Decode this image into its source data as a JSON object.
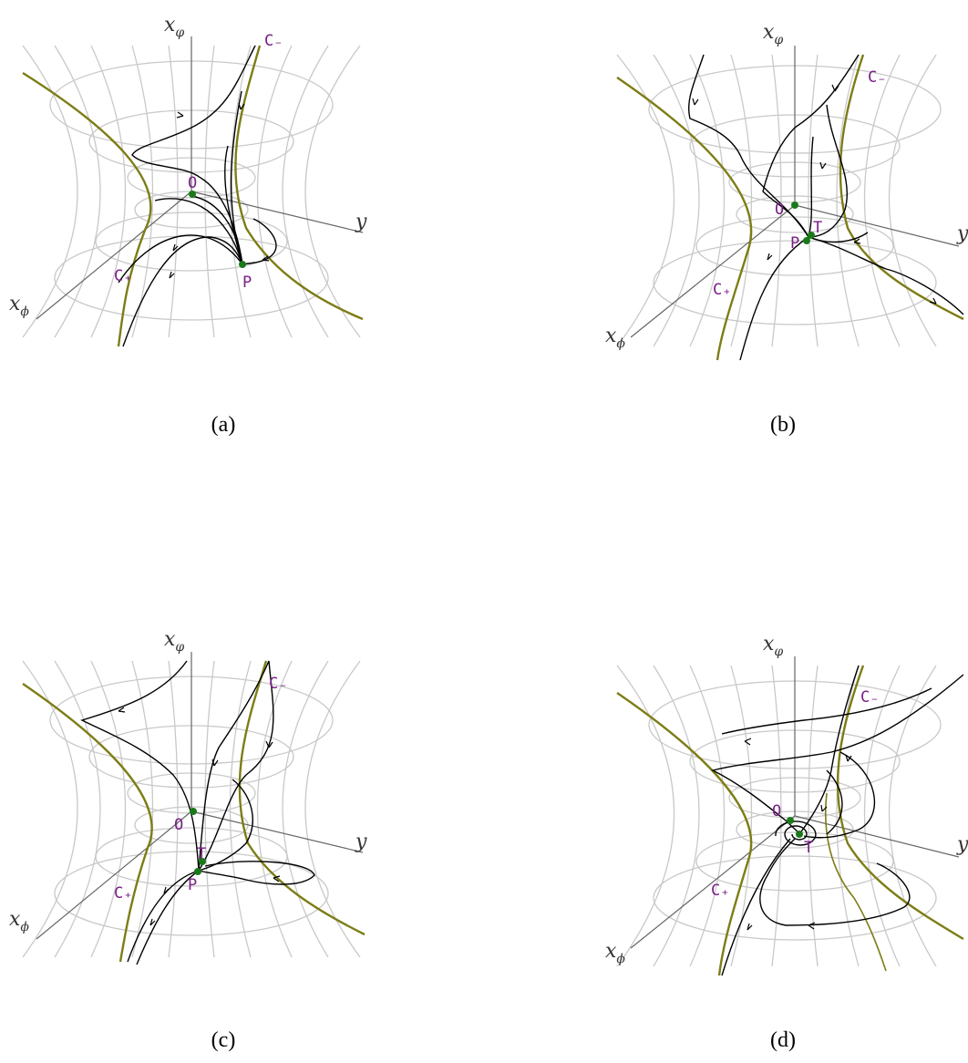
{
  "panels": [
    {
      "caption": "(a)",
      "labels": {
        "x_varphi": "x",
        "x_varphi_sub": "φ",
        "y": "y",
        "x_phi": "x",
        "x_phi_sub": "ϕ",
        "c_minus": "C₋",
        "c_plus": "C₊",
        "o": "O",
        "p": "P"
      }
    },
    {
      "caption": "(b)",
      "labels": {
        "x_varphi": "x",
        "x_varphi_sub": "φ",
        "y": "y",
        "x_phi": "x",
        "x_phi_sub": "ϕ",
        "c_minus": "C₋",
        "c_plus": "C₊",
        "o": "O",
        "p": "P",
        "t": "T"
      }
    },
    {
      "caption": "(c)",
      "labels": {
        "x_varphi": "x",
        "x_varphi_sub": "φ",
        "y": "y",
        "x_phi": "x",
        "x_phi_sub": "ϕ",
        "c_minus": "C₋",
        "c_plus": "C₊",
        "o": "O",
        "p": "P",
        "t": "T"
      }
    },
    {
      "caption": "(d)",
      "labels": {
        "x_varphi": "x",
        "x_varphi_sub": "φ",
        "y": "y",
        "x_phi": "x",
        "x_phi_sub": "ϕ",
        "c_minus": "C₋",
        "c_plus": "C₊",
        "o": "O",
        "t": "T"
      }
    }
  ],
  "colors": {
    "grid": "#c9c9c9",
    "curve_c": "#7d7d16",
    "trajectory": "#000000",
    "fixed_point": "#1a7a1a",
    "point_label": "#7a1f86"
  }
}
